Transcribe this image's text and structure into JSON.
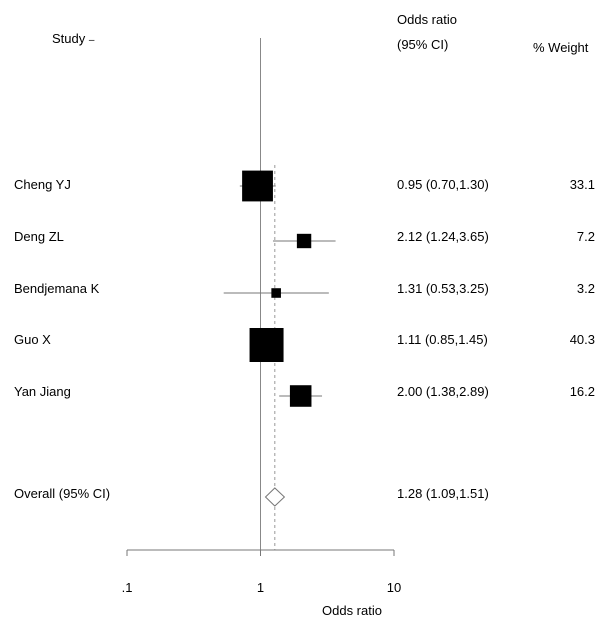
{
  "chart_data": {
    "type": "forest",
    "headers": {
      "study": "Study",
      "or": "Odds ratio",
      "ci": "(95% CI)",
      "weight": "% Weight"
    },
    "xlabel": "Odds ratio",
    "x_scale": "log",
    "xlim": [
      0.1,
      10
    ],
    "x_ticks": [
      ".1",
      "1",
      "10"
    ],
    "reference_line": 1,
    "studies": [
      {
        "name": "Cheng YJ",
        "or": 0.95,
        "lower": 0.7,
        "upper": 1.3,
        "or_label": "0.95 (0.70,1.30)",
        "weight": 33.1,
        "weight_label": "33.1"
      },
      {
        "name": "Deng ZL",
        "or": 2.12,
        "lower": 1.24,
        "upper": 3.65,
        "or_label": "2.12 (1.24,3.65)",
        "weight": 7.2,
        "weight_label": "7.2"
      },
      {
        "name": "Bendjemana K",
        "or": 1.31,
        "lower": 0.53,
        "upper": 3.25,
        "or_label": "1.31 (0.53,3.25)",
        "weight": 3.2,
        "weight_label": "3.2"
      },
      {
        "name": "Guo X",
        "or": 1.11,
        "lower": 0.85,
        "upper": 1.45,
        "or_label": "1.11 (0.85,1.45)",
        "weight": 40.3,
        "weight_label": "40.3"
      },
      {
        "name": "Yan Jiang",
        "or": 2.0,
        "lower": 1.38,
        "upper": 2.89,
        "or_label": "2.00 (1.38,2.89)",
        "weight": 16.2,
        "weight_label": "16.2"
      }
    ],
    "overall": {
      "name": "Overall (95% CI)",
      "or": 1.28,
      "lower": 1.09,
      "upper": 1.51,
      "or_label": "1.28 (1.09,1.51)"
    }
  }
}
